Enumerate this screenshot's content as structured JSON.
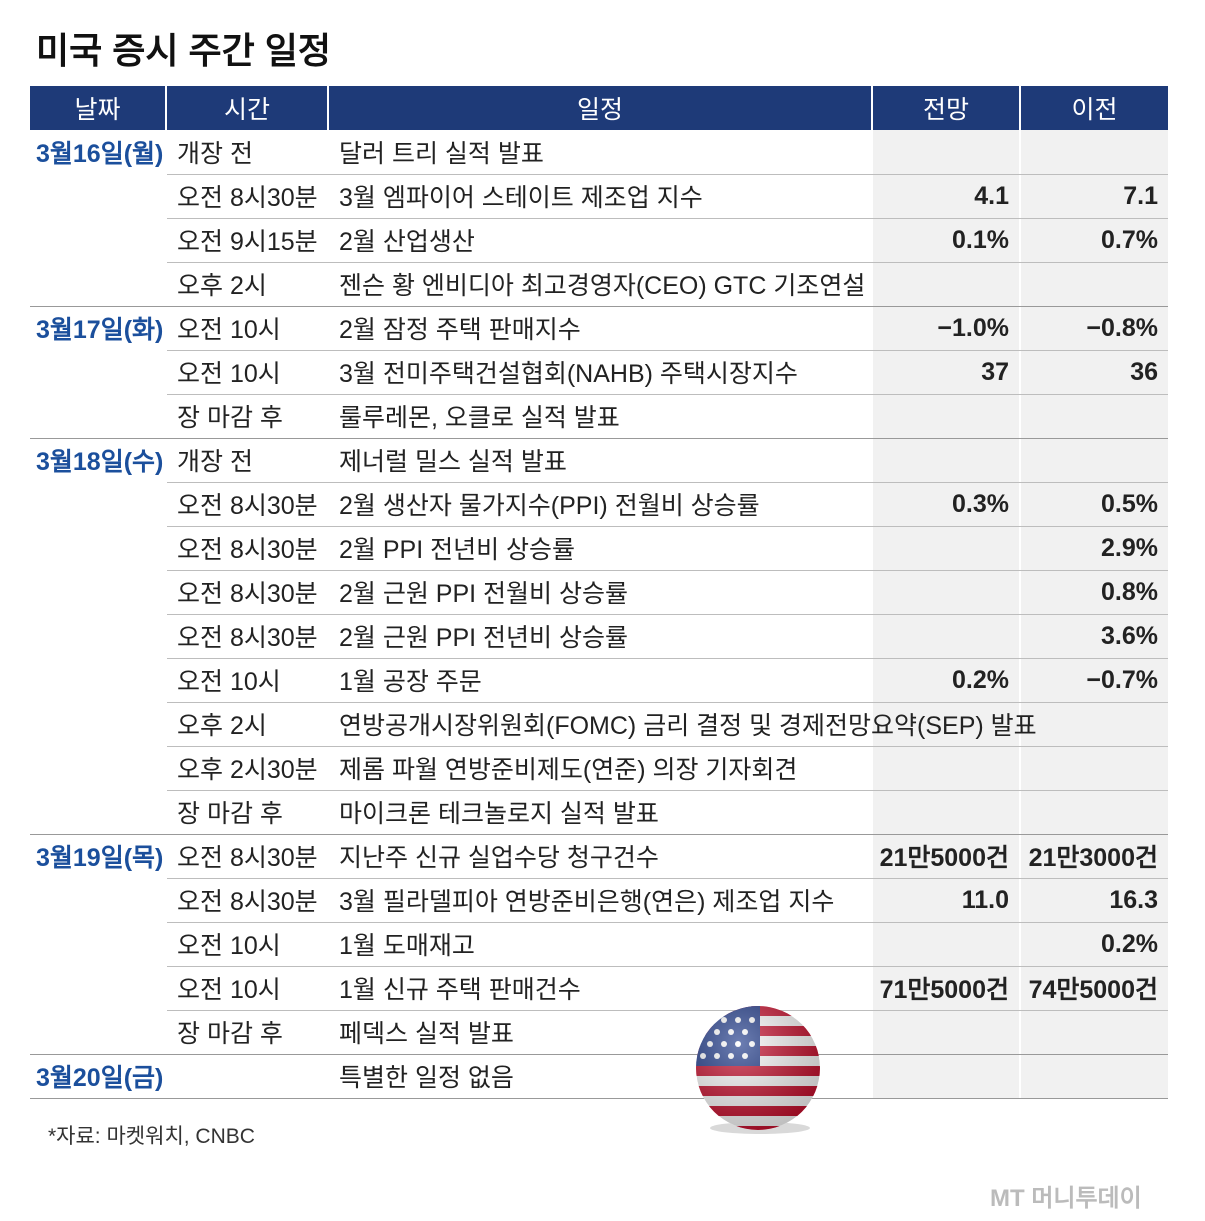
{
  "title": "미국 증시 주간 일정",
  "header": [
    "날짜",
    "시간",
    "일정",
    "전망",
    "이전"
  ],
  "rows": [
    {
      "date": "3월16일(월)",
      "time": "개장 전",
      "event": "달러 트리 실적 발표"
    },
    {
      "time": "오전 8시30분",
      "event": "3월 엠파이어 스테이트 제조업 지수",
      "forecast": "4.1",
      "previous": "7.1"
    },
    {
      "time": "오전 9시15분",
      "event": "2월 산업생산",
      "forecast": "0.1%",
      "previous": "0.7%"
    },
    {
      "time": "오후 2시",
      "event": "젠슨 황 엔비디아 최고경영자(CEO) GTC 기조연설"
    },
    {
      "date": "3월17일(화)",
      "time": "오전 10시",
      "event": "2월 잠정 주택 판매지수",
      "forecast": "−1.0%",
      "previous": "−0.8%"
    },
    {
      "time": "오전 10시",
      "event": "3월 전미주택건설협회(NAHB) 주택시장지수",
      "forecast": "37",
      "previous": "36"
    },
    {
      "time": "장 마감 후",
      "event": "룰루레몬, 오클로 실적 발표"
    },
    {
      "date": "3월18일(수)",
      "time": "개장 전",
      "event": "제너럴 밀스 실적 발표"
    },
    {
      "time": "오전 8시30분",
      "event": "2월 생산자 물가지수(PPI) 전월비 상승률",
      "forecast": "0.3%",
      "previous": "0.5%"
    },
    {
      "time": "오전 8시30분",
      "event": "2월 PPI 전년비 상승률",
      "previous": "2.9%"
    },
    {
      "time": "오전 8시30분",
      "event": "2월 근원 PPI 전월비 상승률",
      "previous": "0.8%"
    },
    {
      "time": "오전 8시30분",
      "event": "2월 근원 PPI 전년비 상승률",
      "previous": "3.6%"
    },
    {
      "time": "오전 10시",
      "event": "1월 공장 주문",
      "forecast": "0.2%",
      "previous": "−0.7%"
    },
    {
      "time": "오후 2시",
      "event": "연방공개시장위원회(FOMC) 금리 결정 및 경제전망요약(SEP) 발표"
    },
    {
      "time": "오후 2시30분",
      "event": "제롬 파월 연방준비제도(연준) 의장 기자회견"
    },
    {
      "time": "장 마감 후",
      "event": "마이크론 테크놀로지 실적 발표"
    },
    {
      "date": "3월19일(목)",
      "time": "오전 8시30분",
      "event": "지난주 신규 실업수당 청구건수",
      "forecast": "21만5000건",
      "previous": "21만3000건"
    },
    {
      "time": "오전 8시30분",
      "event": "3월 필라델피아 연방준비은행(연은) 제조업 지수",
      "forecast": "11.0",
      "previous": "16.3"
    },
    {
      "time": "오전 10시",
      "event": "1월 도매재고",
      "previous": "0.2%"
    },
    {
      "time": "오전 10시",
      "event": "1월 신규 주택 판매건수",
      "forecast": "71만5000건",
      "previous": "74만5000건"
    },
    {
      "time": "장 마감 후",
      "event": "페덱스 실적 발표"
    },
    {
      "date": "3월20일(금)",
      "event": "특별한 일정 없음"
    }
  ],
  "source": "*자료: 마켓워치, CNBC",
  "logo": "MT 머니투데이"
}
